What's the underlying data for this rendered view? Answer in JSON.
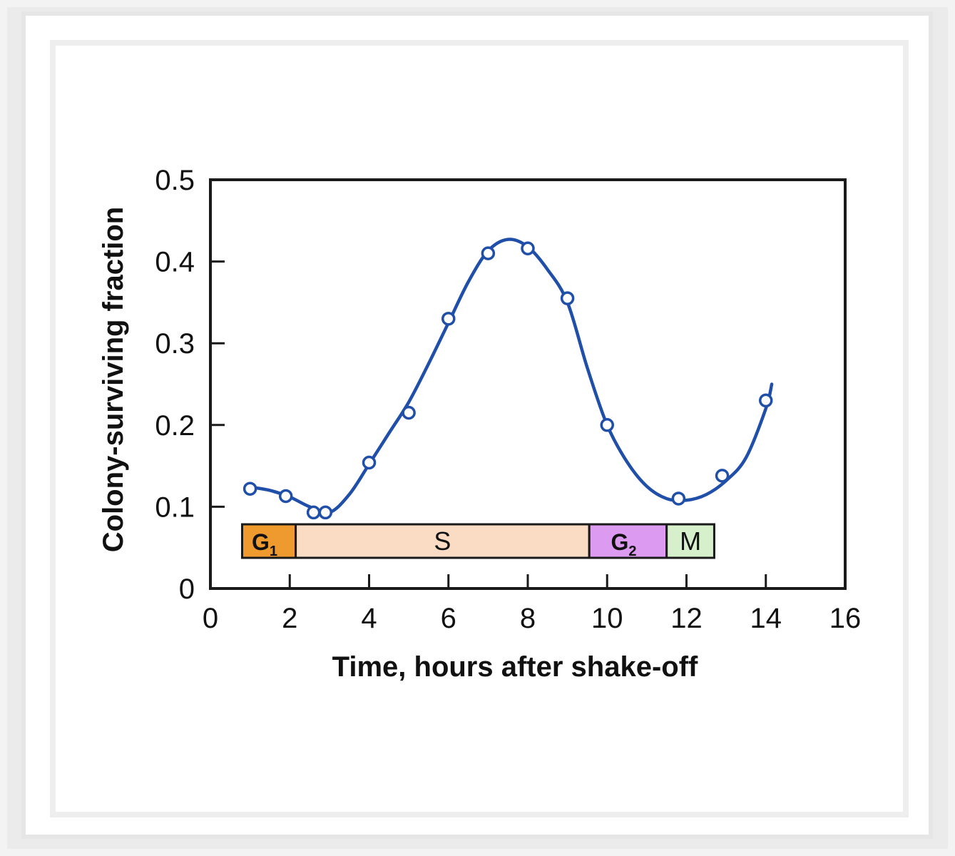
{
  "colors": {
    "curve": "#1f4fa8",
    "marker_fill": "#ffffff",
    "axis": "#1a1a1a",
    "text": "#111111"
  },
  "chart_data": {
    "type": "line",
    "title": "",
    "xlabel": "Time, hours after shake-off",
    "ylabel": "Colony-surviving fraction",
    "xlim": [
      0,
      16
    ],
    "ylim": [
      0,
      0.5
    ],
    "x_ticks": [
      "0",
      "2",
      "4",
      "6",
      "8",
      "10",
      "12",
      "14",
      "16"
    ],
    "y_ticks": [
      "0",
      "0.1",
      "0.2",
      "0.3",
      "0.4",
      "0.5"
    ],
    "grid": false,
    "series": [
      {
        "markers": "open-circle",
        "x": [
          1.0,
          1.9,
          2.6,
          2.9,
          4.0,
          5.0,
          6.0,
          7.0,
          8.0,
          9.0,
          10.0,
          11.8,
          12.9,
          14.0
        ],
        "y": [
          0.122,
          0.113,
          0.093,
          0.093,
          0.154,
          0.215,
          0.33,
          0.41,
          0.416,
          0.355,
          0.2,
          0.11,
          0.138,
          0.23
        ]
      }
    ],
    "fit_curve": {
      "x": [
        1.0,
        1.5,
        2.0,
        2.5,
        3.0,
        3.5,
        4.0,
        4.5,
        5.0,
        5.5,
        6.0,
        6.5,
        7.0,
        7.5,
        8.0,
        8.5,
        9.0,
        9.5,
        10.0,
        10.5,
        11.0,
        11.5,
        12.0,
        12.5,
        13.0,
        13.5,
        14.0,
        14.15
      ],
      "y": [
        0.124,
        0.12,
        0.112,
        0.1,
        0.093,
        0.115,
        0.152,
        0.19,
        0.228,
        0.275,
        0.325,
        0.375,
        0.413,
        0.427,
        0.418,
        0.39,
        0.35,
        0.27,
        0.2,
        0.155,
        0.125,
        0.11,
        0.108,
        0.115,
        0.132,
        0.16,
        0.22,
        0.25
      ]
    },
    "phases": [
      {
        "label": "G",
        "sub": "1",
        "start": 0.8,
        "end": 2.15,
        "color": "#ef9a2e"
      },
      {
        "label": "S",
        "sub": "",
        "start": 2.15,
        "end": 9.55,
        "color": "#f9dcc3"
      },
      {
        "label": "G",
        "sub": "2",
        "start": 9.55,
        "end": 11.5,
        "color": "#dc9af0"
      },
      {
        "label": "M",
        "sub": "",
        "start": 11.5,
        "end": 12.7,
        "color": "#d7f0cc"
      }
    ]
  }
}
